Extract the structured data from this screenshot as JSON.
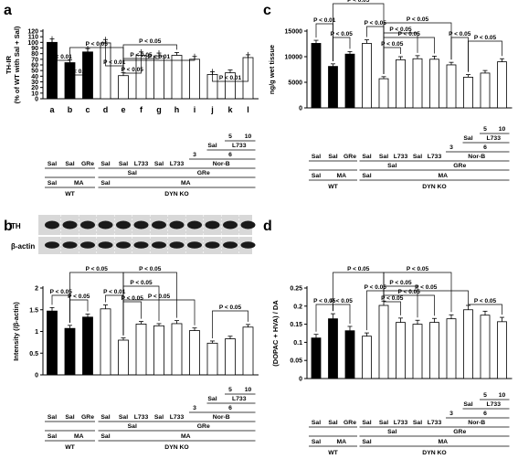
{
  "panels": {
    "a": "a",
    "b": "b",
    "c": "c",
    "d": "d"
  },
  "blot": {
    "th_label": "TH",
    "actin_label": "β-actin"
  },
  "bar_letters": [
    "a",
    "b",
    "c",
    "d",
    "e",
    "f",
    "g",
    "h",
    "i",
    "j",
    "k",
    "l"
  ],
  "colors": {
    "wt_bar": "#000000",
    "ko_bar": "#ffffff",
    "stroke": "#000000"
  },
  "table": {
    "row1": [
      "Sal",
      "Sal",
      "GRe",
      "Sal",
      "Sal",
      "L733",
      "Sal",
      "L733"
    ],
    "row1_extra_3": "3",
    "row1_extra_6": "6",
    "row1_extra_5": "5",
    "row1_extra_10": "10",
    "sal_right": "Sal",
    "l733_right": "L733",
    "norb": "Nor-B",
    "gre": "GRe",
    "sal_mid": "Sal",
    "row_ma": [
      "Sal",
      "MA",
      "Sal",
      "MA"
    ],
    "groups": [
      "WT",
      "DYN KO"
    ]
  },
  "chart_data": [
    {
      "panel": "a",
      "type": "bar",
      "ylabel": "TH-IR\n(% of WT with Sal + Sal)",
      "ylim": [
        0,
        120
      ],
      "yticks": [
        0,
        10,
        20,
        30,
        40,
        50,
        60,
        70,
        80,
        90,
        100,
        110,
        120
      ],
      "categories": [
        "a",
        "b",
        "c",
        "d",
        "e",
        "f",
        "g",
        "h",
        "i",
        "j",
        "k",
        "l"
      ],
      "values": [
        100,
        64,
        83,
        99,
        41,
        77,
        76,
        77,
        70,
        43,
        46,
        73
      ],
      "errors": [
        6,
        5,
        6,
        6,
        5,
        6,
        5,
        5,
        5,
        5,
        5,
        5
      ],
      "annotations": [
        "P < 0.01",
        "P < 0.05",
        "P < 0.05",
        "P < 0.01",
        "P < 0.05",
        "P < 0.05",
        "P < 0.05",
        "P < 0.01",
        "P < 0.01"
      ]
    },
    {
      "panel": "b",
      "type": "bar",
      "ylabel": "Intensity (/β-actin)",
      "ylim": [
        0,
        2
      ],
      "yticks": [
        0,
        0.5,
        1,
        1.5,
        2
      ],
      "values": [
        1.47,
        1.07,
        1.33,
        1.52,
        0.8,
        1.17,
        1.13,
        1.18,
        1.02,
        0.73,
        0.83,
        1.1
      ],
      "errors": [
        0.08,
        0.07,
        0.07,
        0.09,
        0.05,
        0.06,
        0.05,
        0.07,
        0.06,
        0.05,
        0.06,
        0.06
      ],
      "annotations": [
        "P < 0.05",
        "P < 0.05",
        "P < 0.05",
        "P < 0.01",
        "P < 0.05",
        "P < 0.05",
        "P < 0.05",
        "P < 0.05",
        "P < 0.05"
      ]
    },
    {
      "panel": "c",
      "type": "bar",
      "ylabel": "ng/g wet tissue",
      "ylim": [
        0,
        15000
      ],
      "yticks": [
        0,
        5000,
        10000,
        15000
      ],
      "values": [
        12600,
        8100,
        10500,
        12600,
        5700,
        9400,
        9600,
        9500,
        8400,
        6000,
        6800,
        9000
      ],
      "errors": [
        600,
        500,
        500,
        700,
        400,
        600,
        600,
        600,
        500,
        500,
        500,
        600
      ],
      "annotations": [
        "P < 0.01",
        "P < 0.05",
        "P < 0.05",
        "P < 0.05",
        "P < 0.05",
        "P < 0.05",
        "P < 0.05",
        "P < 0.05",
        "P < 0.05",
        "P < 0.05"
      ]
    },
    {
      "panel": "d",
      "type": "bar",
      "ylabel": "(DOPAC + HVA) / DA",
      "ylim": [
        0,
        0.25
      ],
      "yticks": [
        0,
        0.05,
        0.1,
        0.15,
        0.2,
        0.25
      ],
      "values": [
        0.112,
        0.165,
        0.132,
        0.117,
        0.202,
        0.155,
        0.15,
        0.155,
        0.165,
        0.19,
        0.175,
        0.157
      ],
      "errors": [
        0.01,
        0.014,
        0.012,
        0.009,
        0.012,
        0.012,
        0.011,
        0.011,
        0.011,
        0.012,
        0.011,
        0.012
      ],
      "annotations": [
        "P < 0.05",
        "P < 0.05",
        "P < 0.05",
        "P < 0.05",
        "P < 0.05",
        "P < 0.05",
        "P < 0.05",
        "P < 0.05",
        "P < 0.05",
        "P < 0.05"
      ]
    }
  ]
}
